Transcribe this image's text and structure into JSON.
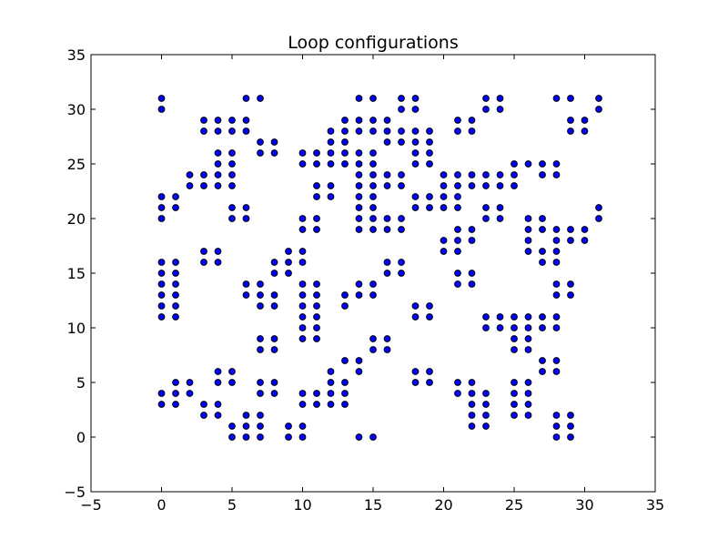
{
  "chart_data": {
    "type": "scatter",
    "title": "Loop configurations",
    "xlabel": "",
    "ylabel": "",
    "xlim": [
      -5,
      35
    ],
    "ylim": [
      -5,
      35
    ],
    "xticks": [
      -5,
      0,
      5,
      10,
      15,
      20,
      25,
      30,
      35
    ],
    "yticks": [
      -5,
      0,
      5,
      10,
      15,
      20,
      25,
      30,
      35
    ],
    "xtick_labels": [
      "−5",
      "0",
      "5",
      "10",
      "15",
      "20",
      "25",
      "30",
      "35"
    ],
    "ytick_labels": [
      "−5",
      "0",
      "5",
      "10",
      "15",
      "20",
      "25",
      "30",
      "35"
    ],
    "grid": false,
    "marker_color": "#0000ff",
    "marker_edge_color": "#000000",
    "points": [
      [
        0,
        31
      ],
      [
        0,
        30
      ],
      [
        0,
        22
      ],
      [
        0,
        21
      ],
      [
        0,
        20
      ],
      [
        0,
        16
      ],
      [
        0,
        15
      ],
      [
        0,
        14
      ],
      [
        0,
        13
      ],
      [
        0,
        12
      ],
      [
        0,
        11
      ],
      [
        0,
        4
      ],
      [
        0,
        3
      ],
      [
        1,
        22
      ],
      [
        1,
        21
      ],
      [
        1,
        16
      ],
      [
        1,
        15
      ],
      [
        1,
        14
      ],
      [
        1,
        13
      ],
      [
        1,
        12
      ],
      [
        1,
        11
      ],
      [
        1,
        5
      ],
      [
        1,
        4
      ],
      [
        1,
        3
      ],
      [
        2,
        24
      ],
      [
        2,
        23
      ],
      [
        2,
        5
      ],
      [
        2,
        4
      ],
      [
        3,
        29
      ],
      [
        3,
        28
      ],
      [
        3,
        24
      ],
      [
        3,
        23
      ],
      [
        3,
        17
      ],
      [
        3,
        16
      ],
      [
        3,
        3
      ],
      [
        3,
        2
      ],
      [
        4,
        29
      ],
      [
        4,
        28
      ],
      [
        4,
        26
      ],
      [
        4,
        25
      ],
      [
        4,
        24
      ],
      [
        4,
        23
      ],
      [
        4,
        17
      ],
      [
        4,
        16
      ],
      [
        4,
        6
      ],
      [
        4,
        5
      ],
      [
        4,
        3
      ],
      [
        4,
        2
      ],
      [
        5,
        29
      ],
      [
        5,
        28
      ],
      [
        5,
        26
      ],
      [
        5,
        25
      ],
      [
        5,
        24
      ],
      [
        5,
        23
      ],
      [
        5,
        21
      ],
      [
        5,
        20
      ],
      [
        5,
        6
      ],
      [
        5,
        5
      ],
      [
        5,
        1
      ],
      [
        5,
        0
      ],
      [
        6,
        31
      ],
      [
        6,
        29
      ],
      [
        6,
        28
      ],
      [
        6,
        21
      ],
      [
        6,
        20
      ],
      [
        6,
        14
      ],
      [
        6,
        13
      ],
      [
        6,
        2
      ],
      [
        6,
        1
      ],
      [
        6,
        0
      ],
      [
        7,
        31
      ],
      [
        7,
        27
      ],
      [
        7,
        26
      ],
      [
        7,
        14
      ],
      [
        7,
        13
      ],
      [
        7,
        12
      ],
      [
        7,
        9
      ],
      [
        7,
        8
      ],
      [
        7,
        5
      ],
      [
        7,
        4
      ],
      [
        7,
        2
      ],
      [
        7,
        1
      ],
      [
        7,
        0
      ],
      [
        8,
        27
      ],
      [
        8,
        26
      ],
      [
        8,
        16
      ],
      [
        8,
        15
      ],
      [
        8,
        13
      ],
      [
        8,
        12
      ],
      [
        8,
        9
      ],
      [
        8,
        8
      ],
      [
        8,
        5
      ],
      [
        8,
        4
      ],
      [
        9,
        17
      ],
      [
        9,
        16
      ],
      [
        9,
        15
      ],
      [
        9,
        1
      ],
      [
        9,
        0
      ],
      [
        10,
        26
      ],
      [
        10,
        25
      ],
      [
        10,
        20
      ],
      [
        10,
        19
      ],
      [
        10,
        17
      ],
      [
        10,
        16
      ],
      [
        10,
        14
      ],
      [
        10,
        13
      ],
      [
        10,
        12
      ],
      [
        10,
        11
      ],
      [
        10,
        10
      ],
      [
        10,
        9
      ],
      [
        10,
        4
      ],
      [
        10,
        3
      ],
      [
        10,
        1
      ],
      [
        10,
        0
      ],
      [
        11,
        26
      ],
      [
        11,
        25
      ],
      [
        11,
        23
      ],
      [
        11,
        22
      ],
      [
        11,
        20
      ],
      [
        11,
        19
      ],
      [
        11,
        14
      ],
      [
        11,
        13
      ],
      [
        11,
        12
      ],
      [
        11,
        11
      ],
      [
        11,
        10
      ],
      [
        11,
        9
      ],
      [
        11,
        4
      ],
      [
        11,
        3
      ],
      [
        12,
        28
      ],
      [
        12,
        27
      ],
      [
        12,
        26
      ],
      [
        12,
        25
      ],
      [
        12,
        23
      ],
      [
        12,
        22
      ],
      [
        12,
        6
      ],
      [
        12,
        5
      ],
      [
        12,
        4
      ],
      [
        12,
        3
      ],
      [
        13,
        29
      ],
      [
        13,
        28
      ],
      [
        13,
        27
      ],
      [
        13,
        26
      ],
      [
        13,
        25
      ],
      [
        13,
        13
      ],
      [
        13,
        12
      ],
      [
        13,
        7
      ],
      [
        13,
        5
      ],
      [
        13,
        4
      ],
      [
        13,
        3
      ],
      [
        14,
        31
      ],
      [
        14,
        29
      ],
      [
        14,
        28
      ],
      [
        14,
        26
      ],
      [
        14,
        25
      ],
      [
        14,
        24
      ],
      [
        14,
        23
      ],
      [
        14,
        22
      ],
      [
        14,
        21
      ],
      [
        14,
        20
      ],
      [
        14,
        19
      ],
      [
        14,
        14
      ],
      [
        14,
        13
      ],
      [
        14,
        7
      ],
      [
        14,
        6
      ],
      [
        14,
        0
      ],
      [
        15,
        31
      ],
      [
        15,
        29
      ],
      [
        15,
        28
      ],
      [
        15,
        26
      ],
      [
        15,
        25
      ],
      [
        15,
        24
      ],
      [
        15,
        23
      ],
      [
        15,
        22
      ],
      [
        15,
        21
      ],
      [
        15,
        20
      ],
      [
        15,
        19
      ],
      [
        15,
        14
      ],
      [
        15,
        13
      ],
      [
        15,
        9
      ],
      [
        15,
        8
      ],
      [
        15,
        0
      ],
      [
        16,
        29
      ],
      [
        16,
        28
      ],
      [
        16,
        27
      ],
      [
        16,
        24
      ],
      [
        16,
        23
      ],
      [
        16,
        20
      ],
      [
        16,
        19
      ],
      [
        16,
        16
      ],
      [
        16,
        15
      ],
      [
        16,
        9
      ],
      [
        16,
        8
      ],
      [
        17,
        31
      ],
      [
        17,
        30
      ],
      [
        17,
        28
      ],
      [
        17,
        27
      ],
      [
        17,
        24
      ],
      [
        17,
        23
      ],
      [
        17,
        20
      ],
      [
        17,
        19
      ],
      [
        17,
        16
      ],
      [
        17,
        15
      ],
      [
        18,
        31
      ],
      [
        18,
        30
      ],
      [
        18,
        28
      ],
      [
        18,
        27
      ],
      [
        18,
        26
      ],
      [
        18,
        25
      ],
      [
        18,
        22
      ],
      [
        18,
        21
      ],
      [
        18,
        12
      ],
      [
        18,
        11
      ],
      [
        18,
        6
      ],
      [
        18,
        5
      ],
      [
        19,
        28
      ],
      [
        19,
        27
      ],
      [
        19,
        26
      ],
      [
        19,
        25
      ],
      [
        19,
        22
      ],
      [
        19,
        21
      ],
      [
        19,
        12
      ],
      [
        19,
        11
      ],
      [
        19,
        6
      ],
      [
        19,
        5
      ],
      [
        20,
        24
      ],
      [
        20,
        23
      ],
      [
        20,
        22
      ],
      [
        20,
        21
      ],
      [
        20,
        18
      ],
      [
        20,
        17
      ],
      [
        21,
        29
      ],
      [
        21,
        28
      ],
      [
        21,
        24
      ],
      [
        21,
        23
      ],
      [
        21,
        22
      ],
      [
        21,
        21
      ],
      [
        21,
        19
      ],
      [
        21,
        18
      ],
      [
        21,
        17
      ],
      [
        21,
        15
      ],
      [
        21,
        14
      ],
      [
        21,
        5
      ],
      [
        21,
        4
      ],
      [
        22,
        29
      ],
      [
        22,
        28
      ],
      [
        22,
        24
      ],
      [
        22,
        23
      ],
      [
        22,
        19
      ],
      [
        22,
        18
      ],
      [
        22,
        15
      ],
      [
        22,
        14
      ],
      [
        22,
        5
      ],
      [
        22,
        4
      ],
      [
        22,
        3
      ],
      [
        22,
        2
      ],
      [
        22,
        1
      ],
      [
        23,
        31
      ],
      [
        23,
        30
      ],
      [
        23,
        24
      ],
      [
        23,
        23
      ],
      [
        23,
        21
      ],
      [
        23,
        20
      ],
      [
        23,
        11
      ],
      [
        23,
        10
      ],
      [
        23,
        4
      ],
      [
        23,
        3
      ],
      [
        23,
        2
      ],
      [
        23,
        1
      ],
      [
        24,
        31
      ],
      [
        24,
        30
      ],
      [
        24,
        24
      ],
      [
        24,
        23
      ],
      [
        24,
        21
      ],
      [
        24,
        20
      ],
      [
        24,
        11
      ],
      [
        24,
        10
      ],
      [
        25,
        25
      ],
      [
        25,
        24
      ],
      [
        25,
        23
      ],
      [
        25,
        11
      ],
      [
        25,
        10
      ],
      [
        25,
        9
      ],
      [
        25,
        8
      ],
      [
        25,
        5
      ],
      [
        25,
        4
      ],
      [
        25,
        3
      ],
      [
        25,
        2
      ],
      [
        26,
        25
      ],
      [
        26,
        20
      ],
      [
        26,
        19
      ],
      [
        26,
        18
      ],
      [
        26,
        17
      ],
      [
        26,
        11
      ],
      [
        26,
        10
      ],
      [
        26,
        9
      ],
      [
        26,
        8
      ],
      [
        26,
        5
      ],
      [
        26,
        4
      ],
      [
        26,
        3
      ],
      [
        26,
        2
      ],
      [
        27,
        25
      ],
      [
        27,
        24
      ],
      [
        27,
        20
      ],
      [
        27,
        19
      ],
      [
        27,
        17
      ],
      [
        27,
        16
      ],
      [
        27,
        11
      ],
      [
        27,
        10
      ],
      [
        27,
        7
      ],
      [
        27,
        6
      ],
      [
        28,
        31
      ],
      [
        28,
        25
      ],
      [
        28,
        24
      ],
      [
        28,
        19
      ],
      [
        28,
        18
      ],
      [
        28,
        17
      ],
      [
        28,
        16
      ],
      [
        28,
        14
      ],
      [
        28,
        13
      ],
      [
        28,
        11
      ],
      [
        28,
        10
      ],
      [
        28,
        7
      ],
      [
        28,
        6
      ],
      [
        28,
        2
      ],
      [
        28,
        1
      ],
      [
        28,
        0
      ],
      [
        29,
        31
      ],
      [
        29,
        29
      ],
      [
        29,
        28
      ],
      [
        29,
        19
      ],
      [
        29,
        18
      ],
      [
        29,
        14
      ],
      [
        29,
        13
      ],
      [
        29,
        2
      ],
      [
        29,
        1
      ],
      [
        29,
        0
      ],
      [
        30,
        29
      ],
      [
        30,
        28
      ],
      [
        30,
        19
      ],
      [
        30,
        18
      ],
      [
        31,
        31
      ],
      [
        31,
        30
      ],
      [
        31,
        21
      ],
      [
        31,
        20
      ]
    ]
  }
}
